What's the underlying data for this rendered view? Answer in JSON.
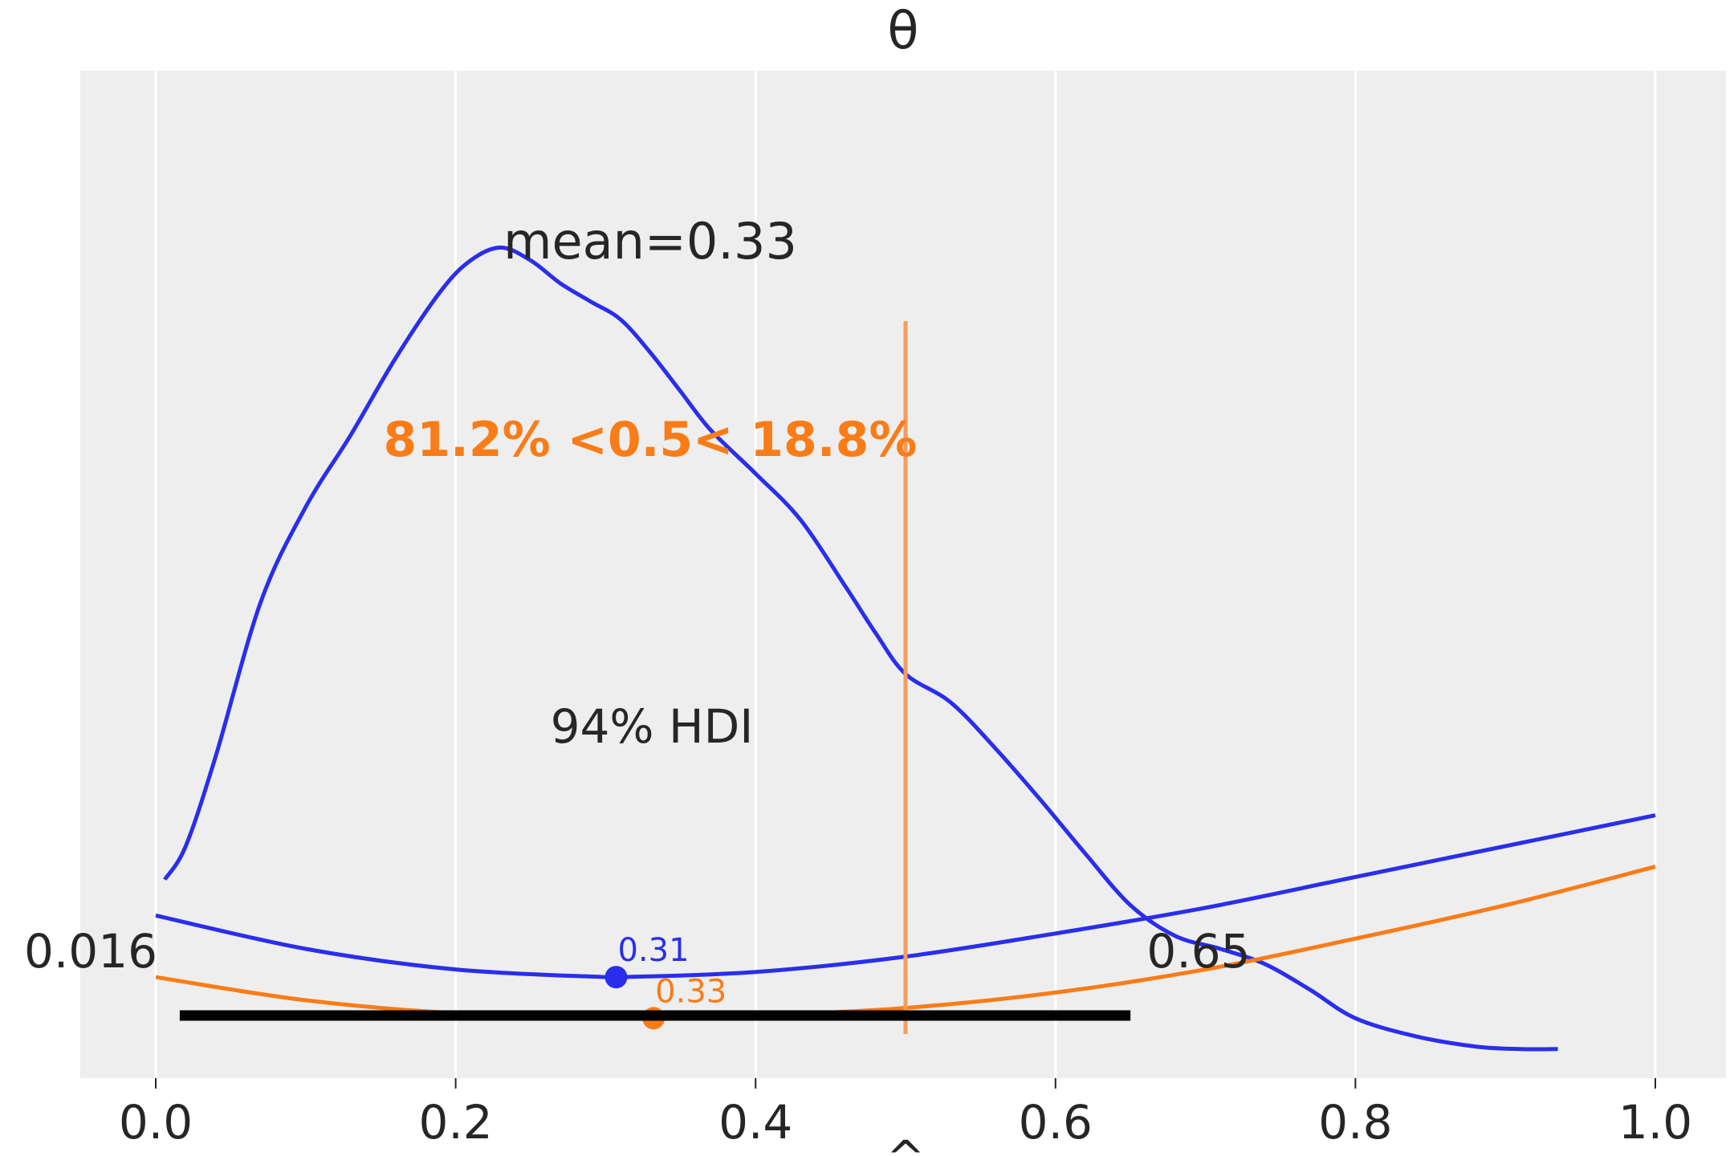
{
  "chart_data": {
    "type": "line",
    "title": "θ",
    "xlabel": "",
    "xlim": [
      -0.05,
      1.05
    ],
    "ylim": [
      0,
      3.1
    ],
    "x_ticks": [
      "0.0",
      "0.2",
      "0.4",
      "0.6",
      "0.8",
      "1.0"
    ],
    "x_tick_values": [
      0.0,
      0.2,
      0.4,
      0.6,
      0.8,
      1.0
    ],
    "grid": true,
    "posterior_kde": {
      "color": "#2a2eec",
      "x": [
        0.006,
        0.02,
        0.04,
        0.07,
        0.1,
        0.13,
        0.16,
        0.19,
        0.21,
        0.23,
        0.25,
        0.27,
        0.29,
        0.31,
        0.33,
        0.35,
        0.37,
        0.4,
        0.43,
        0.46,
        0.48,
        0.5,
        0.53,
        0.56,
        0.59,
        0.62,
        0.65,
        0.68,
        0.71,
        0.74,
        0.77,
        0.8,
        0.84,
        0.88,
        0.91,
        0.935
      ],
      "y": [
        0.67,
        0.8,
        1.15,
        1.75,
        2.12,
        2.4,
        2.7,
        2.96,
        3.08,
        3.13,
        3.08,
        2.99,
        2.92,
        2.85,
        2.72,
        2.57,
        2.42,
        2.25,
        2.07,
        1.81,
        1.63,
        1.47,
        1.36,
        1.18,
        0.98,
        0.77,
        0.57,
        0.45,
        0.4,
        0.34,
        0.24,
        0.13,
        0.06,
        0.02,
        0.01,
        0.01
      ],
      "mean_label": "mean=0.33",
      "hdi_label": "94% HDI",
      "hdi": [
        0.016,
        0.65
      ],
      "hdi_low_label": "0.016",
      "hdi_high_label": "0.65"
    },
    "ref_val": {
      "value": 0.5,
      "label": "81.2% <0.5< 18.8%",
      "color": "#fa7c17",
      "line_color": "#f59c5c"
    },
    "loss_curves": [
      {
        "color": "#2a2eec",
        "x": [
          0.0,
          0.1,
          0.2,
          0.3,
          0.31,
          0.4,
          0.5,
          0.6,
          0.7,
          0.8,
          0.9,
          1.0
        ],
        "y": [
          0.53,
          0.4,
          0.32,
          0.29,
          0.29,
          0.31,
          0.37,
          0.46,
          0.56,
          0.68,
          0.8,
          0.92
        ],
        "min_point": {
          "x": 0.307,
          "y": 0.29
        },
        "min_label": "0.31"
      },
      {
        "color": "#fa7c17",
        "x": [
          0.0,
          0.1,
          0.2,
          0.33,
          0.4,
          0.5,
          0.6,
          0.7,
          0.8,
          0.9,
          1.0
        ],
        "y": [
          0.29,
          0.2,
          0.15,
          0.13,
          0.14,
          0.17,
          0.23,
          0.32,
          0.44,
          0.57,
          0.72
        ],
        "min_point": {
          "x": 0.332,
          "y": 0.13
        },
        "min_label": "0.33"
      }
    ]
  },
  "partial_label": "^"
}
